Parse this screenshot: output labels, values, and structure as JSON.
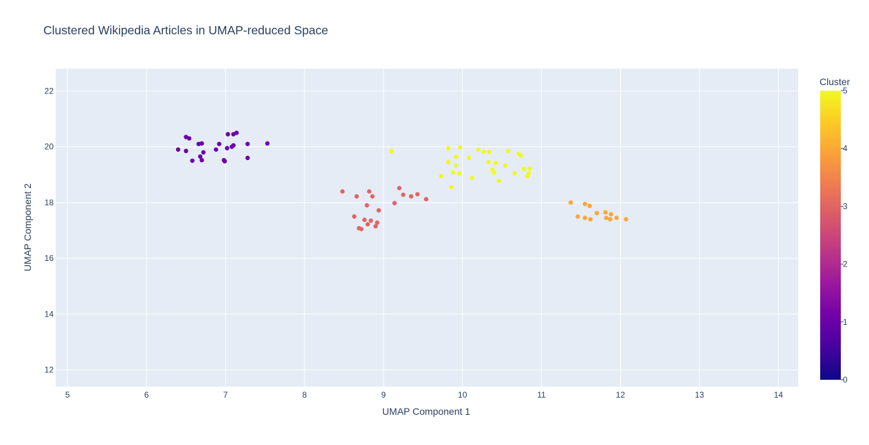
{
  "chart_data": {
    "type": "scatter",
    "title": "Clustered Wikipedia Articles in UMAP-reduced Space",
    "xlabel": "UMAP Component 1",
    "ylabel": "UMAP Component 2",
    "xlim": [
      4.85,
      14.25
    ],
    "ylim": [
      11.4,
      22.8
    ],
    "xticks": [
      5,
      6,
      7,
      8,
      9,
      10,
      11,
      12,
      13,
      14
    ],
    "yticks": [
      12,
      14,
      16,
      18,
      20,
      22
    ],
    "grid": true,
    "colorbar": {
      "title": "Cluster",
      "range": [
        0,
        5
      ],
      "ticks": [
        0,
        1,
        2,
        3,
        4,
        5
      ],
      "colorscale": [
        "#0d0887",
        "#46039f",
        "#7201a8",
        "#9c179e",
        "#bd3786",
        "#d8576b",
        "#ed7953",
        "#fb9f3a",
        "#fdca26",
        "#f0f921"
      ]
    },
    "series": [
      {
        "name": "Cluster 1",
        "cluster": 1,
        "color": "#6a00a8",
        "points": [
          [
            6.4,
            19.9
          ],
          [
            6.5,
            20.35
          ],
          [
            6.54,
            20.3
          ],
          [
            6.5,
            19.85
          ],
          [
            6.58,
            19.5
          ],
          [
            6.66,
            20.1
          ],
          [
            6.7,
            20.12
          ],
          [
            6.68,
            19.65
          ],
          [
            6.72,
            19.8
          ],
          [
            6.7,
            19.52
          ],
          [
            6.88,
            19.9
          ],
          [
            6.92,
            20.1
          ],
          [
            6.98,
            19.52
          ],
          [
            6.99,
            19.48
          ],
          [
            7.02,
            19.95
          ],
          [
            7.03,
            20.45
          ],
          [
            7.08,
            20.0
          ],
          [
            7.1,
            20.05
          ],
          [
            7.1,
            20.45
          ],
          [
            7.14,
            20.5
          ],
          [
            7.28,
            19.6
          ],
          [
            7.28,
            20.1
          ],
          [
            7.53,
            20.12
          ]
        ]
      },
      {
        "name": "Cluster 3",
        "cluster": 3,
        "color": "#e16462",
        "points": [
          [
            8.48,
            18.4
          ],
          [
            8.63,
            17.5
          ],
          [
            8.66,
            18.22
          ],
          [
            8.69,
            17.08
          ],
          [
            8.72,
            17.05
          ],
          [
            8.76,
            17.38
          ],
          [
            8.79,
            17.9
          ],
          [
            8.8,
            17.22
          ],
          [
            8.82,
            18.4
          ],
          [
            8.84,
            17.35
          ],
          [
            8.86,
            18.22
          ],
          [
            8.9,
            17.15
          ],
          [
            8.92,
            17.28
          ],
          [
            8.94,
            17.72
          ],
          [
            9.14,
            17.98
          ],
          [
            9.2,
            18.52
          ],
          [
            9.25,
            18.28
          ],
          [
            9.35,
            18.22
          ],
          [
            9.43,
            18.3
          ],
          [
            9.54,
            18.12
          ]
        ]
      },
      {
        "name": "Cluster 4",
        "cluster": 4,
        "color": "#fca636",
        "points": [
          [
            11.37,
            18.0
          ],
          [
            11.46,
            17.5
          ],
          [
            11.55,
            17.95
          ],
          [
            11.55,
            17.45
          ],
          [
            11.61,
            17.88
          ],
          [
            11.62,
            17.4
          ],
          [
            11.7,
            17.62
          ],
          [
            11.81,
            17.65
          ],
          [
            11.82,
            17.45
          ],
          [
            11.87,
            17.4
          ],
          [
            11.88,
            17.58
          ],
          [
            11.95,
            17.45
          ],
          [
            12.07,
            17.4
          ]
        ]
      },
      {
        "name": "Cluster 5",
        "cluster": 5,
        "color": "#f0f921",
        "points": [
          [
            9.1,
            19.85
          ],
          [
            9.73,
            18.95
          ],
          [
            9.82,
            19.95
          ],
          [
            9.82,
            19.45
          ],
          [
            9.86,
            18.55
          ],
          [
            9.88,
            19.08
          ],
          [
            9.92,
            19.65
          ],
          [
            9.92,
            19.32
          ],
          [
            9.96,
            19.05
          ],
          [
            9.97,
            19.98
          ],
          [
            10.08,
            19.6
          ],
          [
            10.12,
            18.88
          ],
          [
            10.2,
            19.9
          ],
          [
            10.27,
            19.82
          ],
          [
            10.33,
            19.45
          ],
          [
            10.34,
            19.82
          ],
          [
            10.38,
            19.18
          ],
          [
            10.4,
            19.08
          ],
          [
            10.42,
            19.42
          ],
          [
            10.46,
            18.78
          ],
          [
            10.54,
            19.32
          ],
          [
            10.58,
            19.85
          ],
          [
            10.66,
            19.05
          ],
          [
            10.71,
            19.75
          ],
          [
            10.74,
            19.68
          ],
          [
            10.78,
            19.2
          ],
          [
            10.82,
            18.95
          ],
          [
            10.84,
            19.05
          ],
          [
            10.85,
            19.22
          ]
        ]
      }
    ]
  }
}
